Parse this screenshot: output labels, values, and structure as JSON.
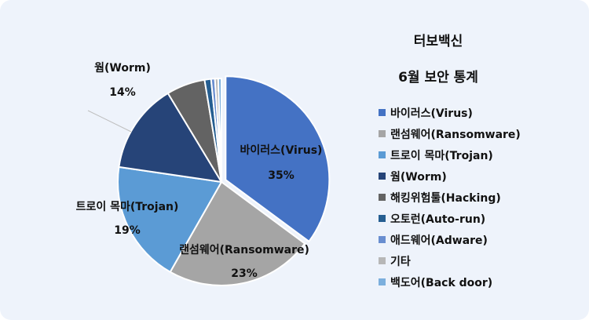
{
  "chart_data": {
    "type": "pie",
    "title": "터보백신",
    "subtitle": "6월 보안 통계",
    "legend_position": "right",
    "slices": [
      {
        "name": "바이러스(Virus)",
        "value": 35,
        "label": "35%",
        "color": "#4472c4",
        "exploded": true
      },
      {
        "name": "랜섬웨어(Ransomware)",
        "value": 23,
        "label": "23%",
        "color": "#a5a5a5",
        "exploded": false
      },
      {
        "name": "트로이 목마(Trojan)",
        "value": 19,
        "label": "19%",
        "color": "#5b9bd5",
        "exploded": false
      },
      {
        "name": "웜(Worm)",
        "value": 14,
        "label": "14%",
        "color": "#264478",
        "exploded": false
      },
      {
        "name": "해킹위험툴(Hacking)",
        "value": 6,
        "label": null,
        "color": "#636363",
        "exploded": false
      },
      {
        "name": "오토런(Auto-run)",
        "value": 1,
        "label": null,
        "color": "#255e91",
        "exploded": false
      },
      {
        "name": "애드웨어(Adware)",
        "value": 0.6,
        "label": null,
        "color": "#698ed0",
        "exploded": false
      },
      {
        "name": "기타",
        "value": 0.5,
        "label": null,
        "color": "#b7b7b7",
        "exploded": false
      },
      {
        "name": "백도어(Back door)",
        "value": 0.5,
        "label": null,
        "color": "#7cafdd",
        "exploded": false
      }
    ]
  }
}
